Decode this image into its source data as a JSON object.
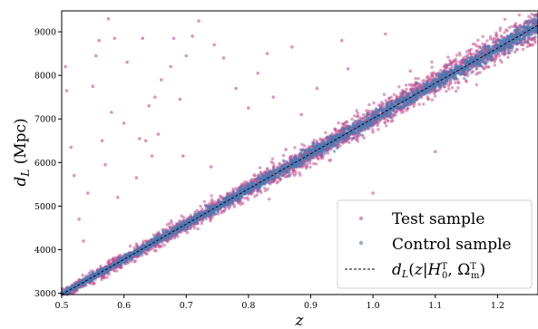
{
  "chart_data": {
    "type": "scatter",
    "xlabel": "z",
    "ylabel": "d_L (Mpc)",
    "xlim": [
      0.5,
      1.265
    ],
    "ylim": [
      2970,
      9480
    ],
    "x_ticks": [
      0.5,
      0.6,
      0.7,
      0.8,
      0.9,
      1.0,
      1.1,
      1.2
    ],
    "x_tick_labels": [
      "0.5",
      "0.6",
      "0.7",
      "0.8",
      "0.9",
      "1.0",
      "1.1",
      "1.2"
    ],
    "y_ticks": [
      3000,
      4000,
      5000,
      6000,
      7000,
      8000,
      9000
    ],
    "y_tick_labels": [
      "3000",
      "4000",
      "5000",
      "6000",
      "7000",
      "8000",
      "9000"
    ],
    "grid": false,
    "legend_position": "bottom-right",
    "fiducial_line": {
      "name": "d_L(z|H0^T, Ωm^T)",
      "x": [
        0.5,
        1.265
      ],
      "y": [
        2970,
        9150
      ],
      "color": "#000000",
      "style": "dashed"
    },
    "series": [
      {
        "name": "Test sample",
        "color": "#c44e8f",
        "relation_endpoints": {
          "x": [
            0.5,
            1.265
          ],
          "y": [
            2970,
            9150
          ]
        },
        "relative_scatter": 0.02,
        "outliers": [
          [
            0.506,
            8200
          ],
          [
            0.508,
            7650
          ],
          [
            0.515,
            6350
          ],
          [
            0.52,
            5700
          ],
          [
            0.528,
            4700
          ],
          [
            0.535,
            4200
          ],
          [
            0.542,
            5300
          ],
          [
            0.55,
            7750
          ],
          [
            0.555,
            8450
          ],
          [
            0.56,
            8800
          ],
          [
            0.565,
            6500
          ],
          [
            0.57,
            5950
          ],
          [
            0.575,
            9300
          ],
          [
            0.58,
            7150
          ],
          [
            0.585,
            8850
          ],
          [
            0.59,
            5200
          ],
          [
            0.6,
            6900
          ],
          [
            0.605,
            8300
          ],
          [
            0.62,
            5650
          ],
          [
            0.625,
            6550
          ],
          [
            0.63,
            8850
          ],
          [
            0.635,
            6500
          ],
          [
            0.64,
            7300
          ],
          [
            0.645,
            6150
          ],
          [
            0.655,
            6650
          ],
          [
            0.66,
            7900
          ],
          [
            0.675,
            8200
          ],
          [
            0.68,
            8850
          ],
          [
            0.69,
            7450
          ],
          [
            0.695,
            6150
          ],
          [
            0.7,
            8450
          ],
          [
            0.71,
            8900
          ],
          [
            0.72,
            9250
          ],
          [
            0.74,
            5900
          ],
          [
            0.745,
            8700
          ],
          [
            0.76,
            8400
          ],
          [
            0.78,
            7700
          ],
          [
            0.8,
            7250
          ],
          [
            0.815,
            8050
          ],
          [
            0.83,
            8500
          ],
          [
            0.84,
            7500
          ],
          [
            0.87,
            8650
          ],
          [
            0.885,
            7100
          ],
          [
            0.91,
            7700
          ],
          [
            0.95,
            8800
          ],
          [
            0.96,
            8150
          ],
          [
            1.0,
            5300
          ],
          [
            1.0,
            6700
          ],
          [
            1.02,
            8950
          ],
          [
            1.06,
            8100
          ],
          [
            1.1,
            6250
          ],
          [
            0.86,
            6300
          ],
          [
            0.92,
            6500
          ],
          [
            0.78,
            5400
          ],
          [
            0.65,
            7500
          ]
        ]
      },
      {
        "name": "Control sample",
        "color": "#4c79b3",
        "relation_endpoints": {
          "x": [
            0.5,
            1.265
          ],
          "y": [
            2970,
            9150
          ]
        },
        "relative_scatter": 0.011
      }
    ]
  }
}
